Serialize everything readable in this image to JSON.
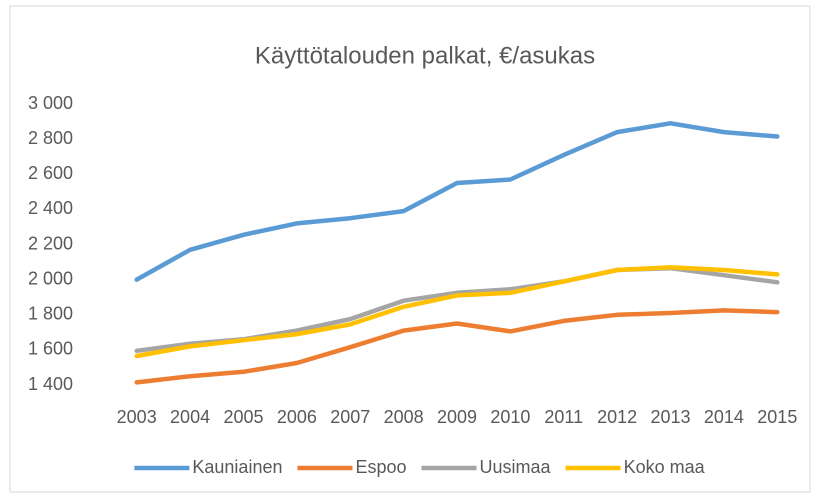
{
  "chart_data": {
    "type": "line",
    "title": "Käyttötalouden palkat, €/asukas",
    "categories": [
      "2003",
      "2004",
      "2005",
      "2006",
      "2007",
      "2008",
      "2009",
      "2010",
      "2011",
      "2012",
      "2013",
      "2014",
      "2015"
    ],
    "series": [
      {
        "name": "Kauniainen",
        "color": "#5b9bd5",
        "values": [
          2000,
          2170,
          2255,
          2320,
          2350,
          2390,
          2550,
          2570,
          2710,
          2840,
          2890,
          2840,
          2815
        ]
      },
      {
        "name": "Espoo",
        "color": "#ed7d31",
        "values": [
          1415,
          1450,
          1475,
          1525,
          1615,
          1710,
          1750,
          1705,
          1765,
          1800,
          1810,
          1825,
          1815
        ]
      },
      {
        "name": "Uusimaa",
        "color": "#a5a5a5",
        "values": [
          1595,
          1635,
          1660,
          1710,
          1775,
          1880,
          1925,
          1945,
          1990,
          2055,
          2065,
          2025,
          1985
        ]
      },
      {
        "name": "Koko maa",
        "color": "#ffc000",
        "values": [
          1565,
          1620,
          1655,
          1690,
          1745,
          1845,
          1910,
          1925,
          1990,
          2055,
          2070,
          2055,
          2030
        ]
      }
    ],
    "ylim": [
      1400,
      3000
    ],
    "yticks": [
      {
        "value": 1400,
        "label": "1 400"
      },
      {
        "value": 1600,
        "label": "1 600"
      },
      {
        "value": 1800,
        "label": "1 800"
      },
      {
        "value": 2000,
        "label": "2 000"
      },
      {
        "value": 2200,
        "label": "2 200"
      },
      {
        "value": 2400,
        "label": "2 400"
      },
      {
        "value": 2600,
        "label": "2 600"
      },
      {
        "value": 2800,
        "label": "2 800"
      },
      {
        "value": 3000,
        "label": "3 000"
      }
    ],
    "grid": false,
    "legend": "bottom"
  }
}
